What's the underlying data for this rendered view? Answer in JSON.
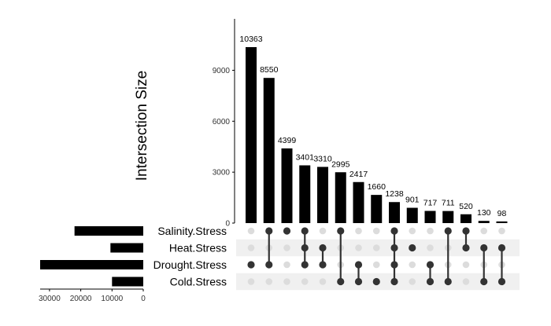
{
  "chart_data": {
    "type": "bar",
    "kind": "upset",
    "ylabel": "Intersection Size",
    "ylim": [
      0,
      12000
    ],
    "yticks": [
      0,
      3000,
      6000,
      9000
    ],
    "sets": [
      "Salinity.Stress",
      "Heat.Stress",
      "Drought.Stress",
      "Cold.Stress"
    ],
    "set_sizes": [
      22000,
      10500,
      33000,
      10000
    ],
    "set_size_ticks": [
      30000,
      20000,
      10000,
      0
    ],
    "set_size_lim": [
      0,
      33000
    ],
    "intersections": [
      {
        "value": 10363,
        "sets": [
          "Drought.Stress"
        ]
      },
      {
        "value": 8550,
        "sets": [
          "Salinity.Stress",
          "Drought.Stress"
        ]
      },
      {
        "value": 4399,
        "sets": [
          "Salinity.Stress"
        ]
      },
      {
        "value": 3401,
        "sets": [
          "Salinity.Stress",
          "Heat.Stress",
          "Drought.Stress"
        ]
      },
      {
        "value": 3310,
        "sets": [
          "Heat.Stress",
          "Drought.Stress"
        ]
      },
      {
        "value": 2995,
        "sets": [
          "Salinity.Stress",
          "Cold.Stress"
        ]
      },
      {
        "value": 2417,
        "sets": [
          "Drought.Stress",
          "Cold.Stress"
        ]
      },
      {
        "value": 1660,
        "sets": [
          "Cold.Stress"
        ]
      },
      {
        "value": 1238,
        "sets": [
          "Salinity.Stress",
          "Heat.Stress",
          "Drought.Stress",
          "Cold.Stress"
        ]
      },
      {
        "value": 901,
        "sets": [
          "Heat.Stress"
        ]
      },
      {
        "value": 717,
        "sets": [
          "Drought.Stress",
          "Cold.Stress"
        ]
      },
      {
        "value": 711,
        "sets": [
          "Salinity.Stress",
          "Cold.Stress"
        ]
      },
      {
        "value": 520,
        "sets": [
          "Salinity.Stress",
          "Heat.Stress"
        ]
      },
      {
        "value": 130,
        "sets": [
          "Heat.Stress",
          "Cold.Stress"
        ]
      },
      {
        "value": 98,
        "sets": [
          "Heat.Stress",
          "Cold.Stress"
        ]
      }
    ],
    "colors": {
      "bar": "#000000",
      "dot_on": "#333333",
      "dot_off": "#dcdcdc",
      "stripe": "#f0f0f0"
    }
  }
}
